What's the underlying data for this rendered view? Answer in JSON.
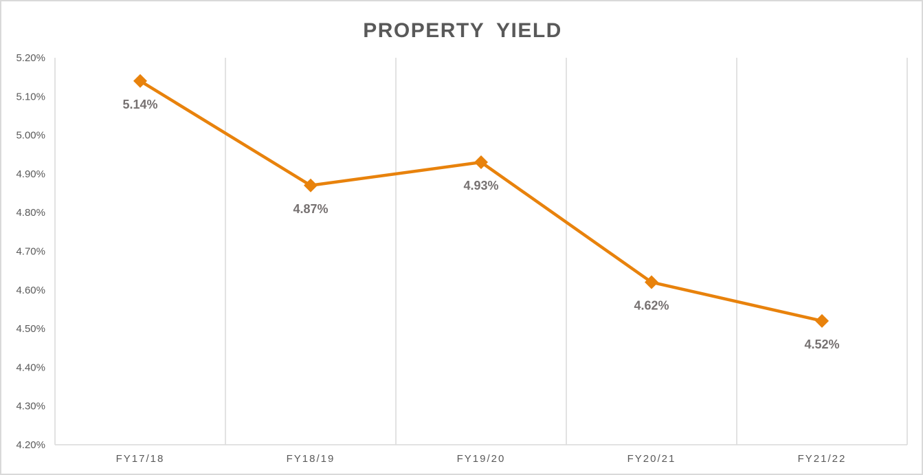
{
  "chart": {
    "frame_border_color": "#D9D9D9",
    "background_color": "#FFFFFF"
  },
  "chart_data": {
    "type": "line",
    "title": "PROPERTY YIELD",
    "xlabel": "",
    "ylabel": "",
    "legend": "none",
    "grid": "vertical-only",
    "categories": [
      "FY17/18",
      "FY18/19",
      "FY19/20",
      "FY20/21",
      "FY21/22"
    ],
    "values": [
      5.14,
      4.87,
      4.93,
      4.62,
      4.52
    ],
    "data_labels": [
      "5.14%",
      "4.87%",
      "4.93%",
      "4.62%",
      "4.52%"
    ],
    "ylim": [
      4.2,
      5.2
    ],
    "ytick_values": [
      4.2,
      4.3,
      4.4,
      4.5,
      4.6,
      4.7,
      4.8,
      4.9,
      5.0,
      5.1,
      5.2
    ],
    "ytick_labels": [
      "4.20%",
      "4.30%",
      "4.40%",
      "4.50%",
      "4.60%",
      "4.70%",
      "4.80%",
      "4.90%",
      "5.00%",
      "5.10%",
      "5.20%"
    ],
    "marker_shape": "diamond",
    "colors": {
      "line": "#E8820C",
      "marker": "#E8820C",
      "gridline": "#D9D9D9",
      "axis_line": "#D9D9D9",
      "axis_text": "#595959",
      "data_label_text": "#767171",
      "title_text": "#595959"
    }
  }
}
